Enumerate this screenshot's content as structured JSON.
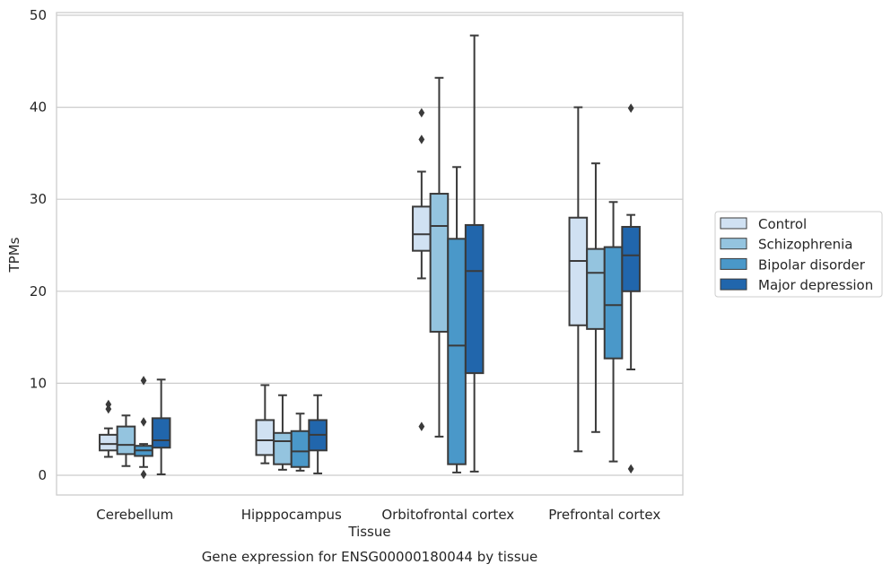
{
  "chart_data": {
    "type": "box",
    "title": "",
    "caption": "Gene expression for ENSG00000180044 by tissue",
    "xlabel": "Tissue",
    "ylabel": "TPMs",
    "ylim": [
      -2,
      50.3
    ],
    "yticks": [
      0,
      10,
      20,
      30,
      40,
      50
    ],
    "grid": true,
    "legend_position": "right",
    "categories": [
      "Cerebellum",
      "Hipppocampus",
      "Orbitofrontal cortex",
      "Prefrontal cortex"
    ],
    "series": [
      {
        "name": "Control",
        "color": "#d0e1f2",
        "boxes": [
          {
            "whislo": 2.0,
            "q1": 2.7,
            "med": 3.4,
            "q3": 4.4,
            "whishi": 5.1,
            "fliers": [
              7.2,
              7.7
            ]
          },
          {
            "whislo": 1.3,
            "q1": 2.2,
            "med": 3.8,
            "q3": 6.0,
            "whishi": 9.8,
            "fliers": []
          },
          {
            "whislo": 21.4,
            "q1": 24.4,
            "med": 26.2,
            "q3": 29.2,
            "whishi": 33.0,
            "fliers": [
              39.4,
              36.5,
              5.3
            ]
          },
          {
            "whislo": 2.6,
            "q1": 16.3,
            "med": 23.3,
            "q3": 28.0,
            "whishi": 40.0,
            "fliers": []
          }
        ]
      },
      {
        "name": "Schizophrenia",
        "color": "#94c4df",
        "boxes": [
          {
            "whislo": 1.0,
            "q1": 2.3,
            "med": 3.3,
            "q3": 5.3,
            "whishi": 6.5,
            "fliers": []
          },
          {
            "whislo": 0.6,
            "q1": 1.2,
            "med": 3.7,
            "q3": 4.6,
            "whishi": 8.7,
            "fliers": []
          },
          {
            "whislo": 4.2,
            "q1": 15.6,
            "med": 27.1,
            "q3": 30.6,
            "whishi": 43.2,
            "fliers": []
          },
          {
            "whislo": 4.7,
            "q1": 15.9,
            "med": 22.0,
            "q3": 24.6,
            "whishi": 33.9,
            "fliers": []
          }
        ]
      },
      {
        "name": "Bipolar disorder",
        "color": "#4a98c9",
        "boxes": [
          {
            "whislo": 0.9,
            "q1": 2.1,
            "med": 2.7,
            "q3": 3.2,
            "whishi": 3.4,
            "fliers": [
              10.3,
              5.8,
              0.1
            ]
          },
          {
            "whislo": 0.5,
            "q1": 0.9,
            "med": 2.6,
            "q3": 4.8,
            "whishi": 6.7,
            "fliers": []
          },
          {
            "whislo": 0.3,
            "q1": 1.2,
            "med": 14.1,
            "q3": 25.7,
            "whishi": 33.5,
            "fliers": []
          },
          {
            "whislo": 1.5,
            "q1": 12.7,
            "med": 18.5,
            "q3": 24.8,
            "whishi": 29.7,
            "fliers": []
          }
        ]
      },
      {
        "name": "Major depression",
        "color": "#2166ac",
        "boxes": [
          {
            "whislo": 0.1,
            "q1": 3.0,
            "med": 3.8,
            "q3": 6.2,
            "whishi": 10.4,
            "fliers": []
          },
          {
            "whislo": 0.2,
            "q1": 2.7,
            "med": 4.4,
            "q3": 6.0,
            "whishi": 8.7,
            "fliers": []
          },
          {
            "whislo": 0.4,
            "q1": 11.1,
            "med": 22.2,
            "q3": 27.2,
            "whishi": 47.8,
            "fliers": []
          },
          {
            "whislo": 11.5,
            "q1": 20.0,
            "med": 23.9,
            "q3": 27.0,
            "whishi": 28.3,
            "fliers": [
              39.9,
              0.7
            ]
          }
        ]
      }
    ]
  }
}
